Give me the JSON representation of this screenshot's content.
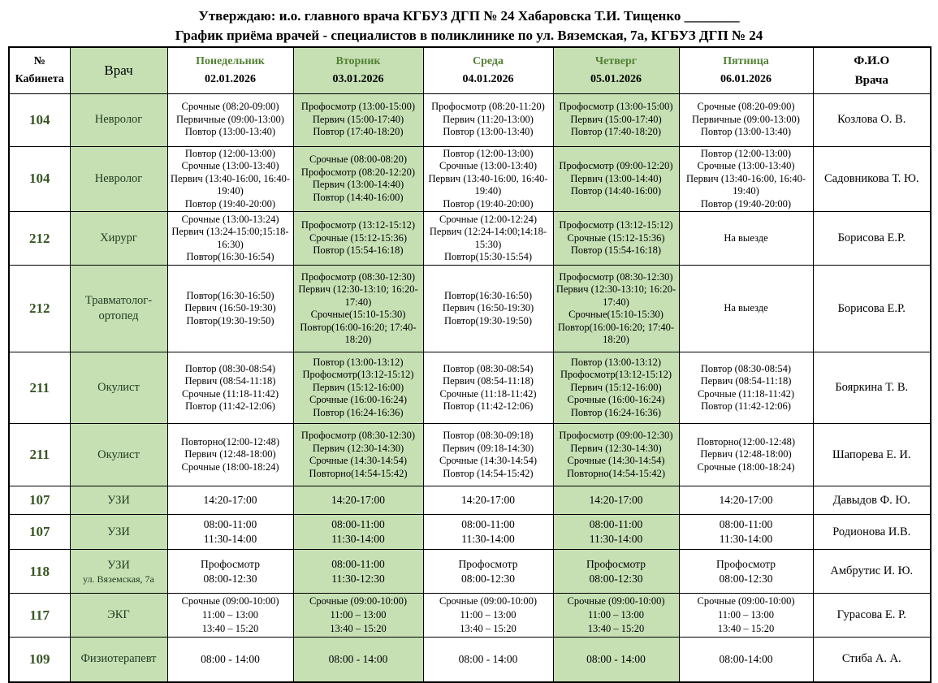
{
  "title": {
    "approval_line": "Утверждаю: и.о. главного врача КГБУЗ ДГП № 24 Хабаровска Т.И. Тищенко ________",
    "schedule_line": "График приёма врачей - специалистов в поликлинике по ул. Вяземская, 7а, КГБУЗ ДГП № 24"
  },
  "colors": {
    "green_cell_background": "#c6e0b4",
    "day_header_text": "#538135",
    "room_number_text": "#375623"
  },
  "table": {
    "header": {
      "room_line1": "№",
      "room_line2": "Кабинета",
      "doctor": "Врач",
      "fio_line1": "Ф.И.О",
      "fio_line2": "Врача",
      "days": [
        {
          "name": "Понедельник",
          "date": "02.01.2026"
        },
        {
          "name": "Вторник",
          "date": "03.01.2026"
        },
        {
          "name": "Среда",
          "date": "04.01.2026"
        },
        {
          "name": "Четверг",
          "date": "05.01.2026"
        },
        {
          "name": "Пятница",
          "date": "06.01.2026"
        }
      ]
    },
    "rows": [
      {
        "room": "104",
        "doctor": "Невролог",
        "days": [
          [
            "Срочные (08:20-09:00)",
            "Первичные (09:00-13:00)",
            "Повтор (13:00-13:40)"
          ],
          [
            "Профосмотр (13:00-15:00)",
            "Первич (15:00-17:40)",
            "Повтор (17:40-18:20)"
          ],
          [
            "Профосмотр (08:20-11:20)",
            "Первич (11:20-13:00)",
            "Повтор (13:00-13:40)"
          ],
          [
            "Профосмотр (13:00-15:00)",
            "Первич (15:00-17:40)",
            "Повтор (17:40-18:20)"
          ],
          [
            "Срочные (08:20-09:00)",
            "Первичные (09:00-13:00)",
            "Повтор (13:00-13:40)"
          ]
        ],
        "fio": "Козлова О. В."
      },
      {
        "room": "104",
        "doctor": "Невролог",
        "days": [
          [
            "Повтор (12:00-13:00)",
            "Срочные (13:00-13:40)",
            "Первич (13:40-16:00, 16:40-19:40)",
            "Повтор (19:40-20:00)"
          ],
          [
            "Срочные (08:00-08:20)",
            "Профосмотр (08:20-12:20)",
            "Первич (13:00-14:40)",
            "Повтор (14:40-16:00)"
          ],
          [
            "Повтор (12:00-13:00)",
            "Срочные (13:00-13:40)",
            "Первич (13:40-16:00, 16:40-19:40)",
            "Повтор (19:40-20:00)"
          ],
          [
            "Профосмотр (09:00-12:20)",
            "Первич (13:00-14:40)",
            "Повтор (14:40-16:00)"
          ],
          [
            "Повтор (12:00-13:00)",
            "Срочные (13:00-13:40)",
            "Первич (13:40-16:00, 16:40-19:40)",
            "Повтор (19:40-20:00)"
          ]
        ],
        "fio": "Садовникова Т. Ю."
      },
      {
        "room": "212",
        "doctor": "Хирург",
        "days": [
          [
            "Срочные (13:00-13:24)",
            "Первич (13:24-15:00;15:18-16:30)",
            "Повтор(16:30-16:54)"
          ],
          [
            "Профосмотр (13:12-15:12)",
            "Срочные (15:12-15:36)",
            "Повтор (15:54-16:18)"
          ],
          [
            "Срочные (12:00-12:24)",
            "Первич (12:24-14:00;14:18-15:30)",
            "Повтор(15:30-15:54)"
          ],
          [
            "Профосмотр (13:12-15:12)",
            "Срочные (15:12-15:36)",
            "Повтор (15:54-16:18)"
          ],
          [
            "На выезде"
          ]
        ],
        "fio": "Борисова Е.Р."
      },
      {
        "room": "212",
        "doctor": "Травматолог-ортопед",
        "days": [
          [
            "Повтор(16:30-16:50)",
            "Первич (16:50-19:30)",
            "Повтор(19:30-19:50)"
          ],
          [
            "Профосмотр (08:30-12:30)",
            "Первич (12:30-13:10; 16:20-17:40)",
            "Срочные(15:10-15:30)",
            "Повтор(16:00-16:20; 17:40-18:20)"
          ],
          [
            "Повтор(16:30-16:50)",
            "Первич (16:50-19:30)",
            "Повтор(19:30-19:50)"
          ],
          [
            "Профосмотр (08:30-12:30)",
            "Первич (12:30-13:10; 16:20-17:40)",
            "Срочные(15:10-15:30)",
            "Повтор(16:00-16:20; 17:40-18:20)"
          ],
          [
            "На выезде"
          ]
        ],
        "fio": "Борисова Е.Р."
      },
      {
        "room": "211",
        "doctor": "Окулист",
        "days": [
          [
            "Повтор (08:30-08:54)",
            "Первич (08:54-11:18)",
            "Срочные (11:18-11:42)",
            "Повтор (11:42-12:06)"
          ],
          [
            "Повтор (13:00-13:12)",
            "Профосмотр(13:12-15:12)",
            "Первич (15:12-16:00)",
            "Срочные (16:00-16:24)",
            "Повтор (16:24-16:36)"
          ],
          [
            "Повтор (08:30-08:54)",
            "Первич (08:54-11:18)",
            "Срочные (11:18-11:42)",
            "Повтор (11:42-12:06)"
          ],
          [
            "Повтор (13:00-13:12)",
            "Профосмотр(13:12-15:12)",
            "Первич (15:12-16:00)",
            "Срочные (16:00-16:24)",
            "Повтор (16:24-16:36)"
          ],
          [
            "Повтор (08:30-08:54)",
            "Первич (08:54-11:18)",
            "Срочные (11:18-11:42)",
            "Повтор (11:42-12:06)"
          ]
        ],
        "fio": "Бояркина Т. В."
      },
      {
        "room": "211",
        "doctor": "Окулист",
        "days": [
          [
            "Повторно(12:00-12:48)",
            "Первич (12:48-18:00)",
            "Срочные (18:00-18:24)"
          ],
          [
            "Профосмотр (08:30-12:30)",
            "Первич (12:30-14:30)",
            "Срочные (14:30-14:54)",
            "Повторно(14:54-15:42)"
          ],
          [
            "Повтор (08:30-09:18)",
            "Первич (09:18-14:30)",
            "Срочные (14:30-14:54)",
            "Повтор (14:54-15:42)"
          ],
          [
            "Профосмотр (09:00-12:30)",
            "Первич (12:30-14:30)",
            "Срочные (14:30-14:54)",
            "Повторно(14:54-15:42)"
          ],
          [
            "Повторно(12:00-12:48)",
            "Первич (12:48-18:00)",
            "Срочные (18:00-18:24)"
          ]
        ],
        "fio": "Шапорева Е. И."
      },
      {
        "room": "107",
        "doctor": "УЗИ",
        "days": [
          [
            "14:20-17:00"
          ],
          [
            "14:20-17:00"
          ],
          [
            "14:20-17:00"
          ],
          [
            "14:20-17:00"
          ],
          [
            "14:20-17:00"
          ]
        ],
        "fio": "Давыдов Ф. Ю."
      },
      {
        "room": "107",
        "doctor": "УЗИ",
        "days": [
          [
            "08:00-11:00",
            "11:30-14:00"
          ],
          [
            "08:00-11:00",
            "11:30-14:00"
          ],
          [
            "08:00-11:00",
            "11:30-14:00"
          ],
          [
            "08:00-11:00",
            "11:30-14:00"
          ],
          [
            "08:00-11:00",
            "11:30-14:00"
          ]
        ],
        "fio": "Родионова И.В."
      },
      {
        "room": "118",
        "doctor": "УЗИ",
        "doctor_sub": "ул. Вяземская, 7а",
        "days": [
          [
            "Профосмотр",
            "08:00-12:30"
          ],
          [
            "08:00-11:00",
            "11:30-12:30"
          ],
          [
            "Профосмотр",
            "08:00-12:30"
          ],
          [
            "Профосмотр",
            "08:00-12:30"
          ],
          [
            "Профосмотр",
            "08:00-12:30"
          ]
        ],
        "fio": "Амбрутис И. Ю."
      },
      {
        "room": "117",
        "doctor": "ЭКГ",
        "days": [
          [
            "Срочные (09:00-10:00)",
            "11:00 – 13:00",
            "13:40 – 15:20"
          ],
          [
            "Срочные (09:00-10:00)",
            "11:00 – 13:00",
            "13:40 – 15:20"
          ],
          [
            "Срочные (09:00-10:00)",
            "11:00 – 13:00",
            "13:40 – 15:20"
          ],
          [
            "Срочные (09:00-10:00)",
            "11:00 – 13:00",
            "13:40 – 15:20"
          ],
          [
            "Срочные (09:00-10:00)",
            "11:00 – 13:00",
            "13:40 – 15:20"
          ]
        ],
        "fio": "Гурасова Е. Р."
      },
      {
        "room": "109",
        "doctor": "Физиотерапевт",
        "days": [
          [
            "08:00 - 14:00"
          ],
          [
            "08:00 - 14:00"
          ],
          [
            "08:00 - 14:00"
          ],
          [
            "08:00 - 14:00"
          ],
          [
            "08:00-14:00"
          ]
        ],
        "fio": "Стиба А. А."
      }
    ]
  }
}
